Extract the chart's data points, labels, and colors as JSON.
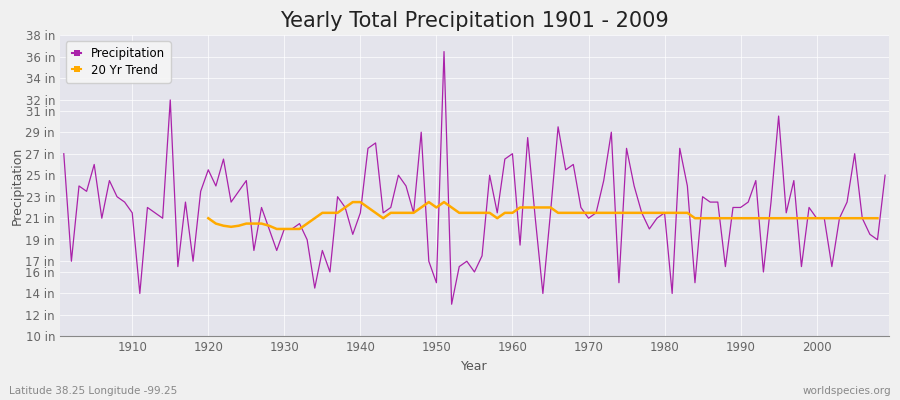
{
  "title": "Yearly Total Precipitation 1901 - 2009",
  "xlabel": "Year",
  "ylabel": "Precipitation",
  "bottom_left_label": "Latitude 38.25 Longitude -99.25",
  "bottom_right_label": "worldspecies.org",
  "years": [
    1901,
    1902,
    1903,
    1904,
    1905,
    1906,
    1907,
    1908,
    1909,
    1910,
    1911,
    1912,
    1913,
    1914,
    1915,
    1916,
    1917,
    1918,
    1919,
    1920,
    1921,
    1922,
    1923,
    1924,
    1925,
    1926,
    1927,
    1928,
    1929,
    1930,
    1931,
    1932,
    1933,
    1934,
    1935,
    1936,
    1937,
    1938,
    1939,
    1940,
    1941,
    1942,
    1943,
    1944,
    1945,
    1946,
    1947,
    1948,
    1949,
    1950,
    1951,
    1952,
    1953,
    1954,
    1955,
    1956,
    1957,
    1958,
    1959,
    1960,
    1961,
    1962,
    1963,
    1964,
    1965,
    1966,
    1967,
    1968,
    1969,
    1970,
    1971,
    1972,
    1973,
    1974,
    1975,
    1976,
    1977,
    1978,
    1979,
    1980,
    1981,
    1982,
    1983,
    1984,
    1985,
    1986,
    1987,
    1988,
    1989,
    1990,
    1991,
    1992,
    1993,
    1994,
    1995,
    1996,
    1997,
    1998,
    1999,
    2000,
    2001,
    2002,
    2003,
    2004,
    2005,
    2006,
    2007,
    2008,
    2009
  ],
  "precip": [
    27.0,
    17.0,
    24.0,
    23.5,
    26.0,
    21.0,
    24.5,
    23.0,
    22.5,
    21.5,
    14.0,
    22.0,
    21.5,
    21.0,
    32.0,
    16.5,
    22.5,
    17.0,
    23.5,
    25.5,
    24.0,
    26.5,
    22.5,
    23.5,
    24.5,
    18.0,
    22.0,
    20.0,
    18.0,
    20.0,
    20.0,
    20.5,
    19.0,
    14.5,
    18.0,
    16.0,
    23.0,
    22.0,
    19.5,
    21.5,
    27.5,
    28.0,
    21.5,
    22.0,
    25.0,
    24.0,
    21.5,
    29.0,
    17.0,
    15.0,
    36.5,
    13.0,
    16.5,
    17.0,
    16.0,
    17.5,
    25.0,
    21.5,
    26.5,
    27.0,
    18.5,
    28.5,
    21.0,
    14.0,
    21.5,
    29.5,
    25.5,
    26.0,
    22.0,
    21.0,
    21.5,
    24.5,
    29.0,
    15.0,
    27.5,
    24.0,
    21.5,
    20.0,
    21.0,
    21.5,
    14.0,
    27.5,
    24.0,
    15.0,
    23.0,
    22.5,
    22.5,
    16.5,
    22.0,
    22.0,
    22.5,
    24.5,
    16.0,
    22.5,
    30.5,
    21.5,
    24.5,
    16.5,
    22.0,
    21.0,
    21.0,
    16.5,
    21.0,
    22.5,
    27.0,
    21.0,
    19.5,
    19.0,
    25.0
  ],
  "trend_start_year": 1920,
  "trend": [
    21.0,
    20.5,
    20.3,
    20.2,
    20.3,
    20.5,
    20.5,
    20.5,
    20.3,
    20.0,
    20.0,
    20.0,
    20.0,
    20.5,
    21.0,
    21.5,
    21.5,
    21.5,
    22.0,
    22.5,
    22.5,
    22.0,
    21.5,
    21.0,
    21.5,
    21.5,
    21.5,
    21.5,
    22.0,
    22.5,
    22.0,
    22.5,
    22.0,
    21.5,
    21.5,
    21.5,
    21.5,
    21.5,
    21.0,
    21.5,
    21.5,
    22.0,
    22.0,
    22.0,
    22.0,
    22.0,
    21.5,
    21.5,
    21.5,
    21.5,
    21.5,
    21.5,
    21.5,
    21.5,
    21.5,
    21.5,
    21.5,
    21.5,
    21.5,
    21.5,
    21.5,
    21.5,
    21.5,
    21.5,
    21.0,
    21.0,
    21.0,
    21.0,
    21.0,
    21.0,
    21.0,
    21.0,
    21.0,
    21.0,
    21.0,
    21.0,
    21.0,
    21.0,
    21.0,
    21.0,
    21.0,
    21.0,
    21.0,
    21.0,
    21.0,
    21.0,
    21.0,
    21.0,
    21.0
  ],
  "precip_color": "#aa22aa",
  "trend_color": "#ffaa00",
  "background_color": "#f0f0f0",
  "plot_bg_color": "#e4e4ec",
  "ylim": [
    10,
    38
  ],
  "yticks": [
    10,
    12,
    14,
    16,
    17,
    19,
    21,
    23,
    25,
    27,
    29,
    31,
    32,
    34,
    36,
    38
  ],
  "xtick_years": [
    1910,
    1920,
    1930,
    1940,
    1950,
    1960,
    1970,
    1980,
    1990,
    2000
  ],
  "title_fontsize": 15,
  "axis_label_fontsize": 9,
  "tick_fontsize": 8.5,
  "legend_fontsize": 8.5,
  "footer_fontsize": 7.5
}
